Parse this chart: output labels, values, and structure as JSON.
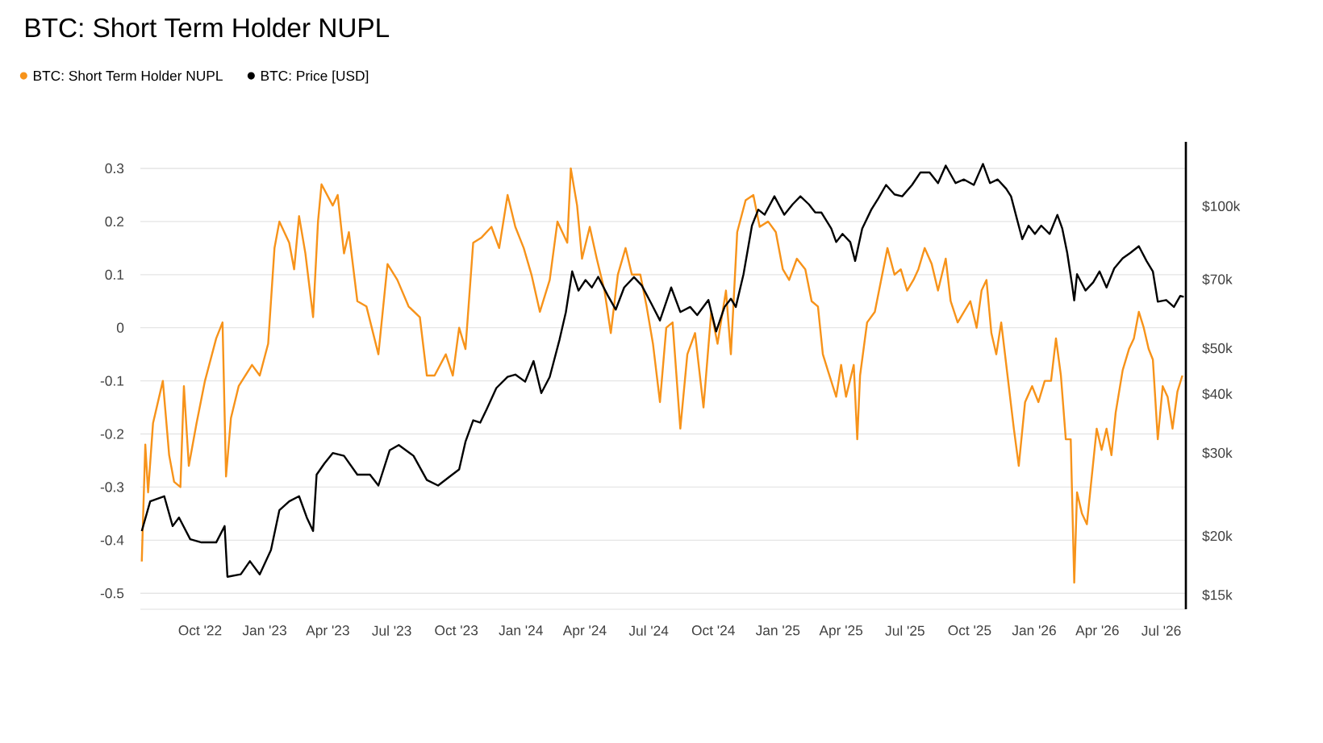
{
  "chart_data": {
    "type": "line",
    "title": "BTC: Short Term Holder NUPL",
    "legend": "top left",
    "grid": "y",
    "log": "y2",
    "xlim": [
      "2022-07-08",
      "2026-08-05"
    ],
    "xticks": [
      {
        "value": "2022-10-01",
        "label": "Oct '22"
      },
      {
        "value": "2023-01-01",
        "label": "Jan '23"
      },
      {
        "value": "2023-04-01",
        "label": "Apr '23"
      },
      {
        "value": "2023-07-01",
        "label": "Jul '23"
      },
      {
        "value": "2023-10-01",
        "label": "Oct '23"
      },
      {
        "value": "2024-01-01",
        "label": "Jan '24"
      },
      {
        "value": "2024-04-01",
        "label": "Apr '24"
      },
      {
        "value": "2024-07-01",
        "label": "Jul '24"
      },
      {
        "value": "2024-10-01",
        "label": "Oct '24"
      },
      {
        "value": "2025-01-01",
        "label": "Jan '25"
      },
      {
        "value": "2025-04-01",
        "label": "Apr '25"
      },
      {
        "value": "2025-07-01",
        "label": "Jul '25"
      },
      {
        "value": "2025-10-01",
        "label": "Oct '25"
      },
      {
        "value": "2026-01-01",
        "label": "Jan '26"
      },
      {
        "value": "2026-04-01",
        "label": "Apr '26"
      },
      {
        "value": "2026-07-01",
        "label": "Jul '26"
      }
    ],
    "ylim": [
      -0.53,
      0.35
    ],
    "yticks": [
      -0.5,
      -0.4,
      -0.3,
      -0.2,
      -0.1,
      0,
      0.1,
      0.2,
      0.3
    ],
    "y2lim": [
      14000,
      137000
    ],
    "y2ticks": [
      {
        "value": 15000,
        "label": "$15k"
      },
      {
        "value": 20000,
        "label": "$20k"
      },
      {
        "value": 30000,
        "label": "$30k"
      },
      {
        "value": 40000,
        "label": "$40k"
      },
      {
        "value": 50000,
        "label": "$50k"
      },
      {
        "value": 70000,
        "label": "$70k"
      },
      {
        "value": 100000,
        "label": "$100k"
      }
    ],
    "series": [
      {
        "name": "BTC: Short Term Holder NUPL",
        "color": "#f7931a",
        "x": [
          "2022-07-10",
          "2022-07-15",
          "2022-07-19",
          "2022-07-26",
          "2022-08-09",
          "2022-08-18",
          "2022-08-25",
          "2022-09-03",
          "2022-09-08",
          "2022-09-15",
          "2022-09-26",
          "2022-10-08",
          "2022-10-24",
          "2022-11-02",
          "2022-11-07",
          "2022-11-14",
          "2022-11-25",
          "2022-12-14",
          "2022-12-25",
          "2023-01-06",
          "2023-01-15",
          "2023-01-22",
          "2023-02-05",
          "2023-02-12",
          "2023-02-19",
          "2023-02-28",
          "2023-03-11",
          "2023-03-18",
          "2023-03-23",
          "2023-04-08",
          "2023-04-15",
          "2023-04-24",
          "2023-05-01",
          "2023-05-13",
          "2023-05-26",
          "2023-06-12",
          "2023-06-25",
          "2023-07-09",
          "2023-07-25",
          "2023-08-10",
          "2023-08-20",
          "2023-08-31",
          "2023-09-16",
          "2023-09-26",
          "2023-10-05",
          "2023-10-14",
          "2023-10-25",
          "2023-11-06",
          "2023-11-20",
          "2023-12-01",
          "2023-12-13",
          "2023-12-24",
          "2024-01-05",
          "2024-01-16",
          "2024-01-28",
          "2024-02-11",
          "2024-02-22",
          "2024-03-07",
          "2024-03-12",
          "2024-03-21",
          "2024-03-28",
          "2024-04-08",
          "2024-04-18",
          "2024-04-29",
          "2024-05-08",
          "2024-05-18",
          "2024-05-29",
          "2024-06-07",
          "2024-06-19",
          "2024-06-28",
          "2024-07-07",
          "2024-07-17",
          "2024-07-26",
          "2024-08-04",
          "2024-08-15",
          "2024-08-25",
          "2024-09-05",
          "2024-09-17",
          "2024-09-28",
          "2024-10-07",
          "2024-10-19",
          "2024-10-26",
          "2024-11-04",
          "2024-11-16",
          "2024-11-27",
          "2024-12-06",
          "2024-12-18",
          "2024-12-29",
          "2025-01-08",
          "2025-01-17",
          "2025-01-28",
          "2025-02-09",
          "2025-02-18",
          "2025-02-27",
          "2025-03-06",
          "2025-03-13",
          "2025-03-25",
          "2025-04-01",
          "2025-04-08",
          "2025-04-19",
          "2025-04-24",
          "2025-04-28",
          "2025-05-08",
          "2025-05-19",
          "2025-05-31",
          "2025-06-06",
          "2025-06-16",
          "2025-06-25",
          "2025-07-04",
          "2025-07-13",
          "2025-07-20",
          "2025-07-29",
          "2025-08-08",
          "2025-08-17",
          "2025-08-28",
          "2025-09-04",
          "2025-09-14",
          "2025-09-23",
          "2025-10-02",
          "2025-10-11",
          "2025-10-18",
          "2025-10-25",
          "2025-11-01",
          "2025-11-08",
          "2025-11-15",
          "2025-11-24",
          "2025-12-03",
          "2025-12-10",
          "2025-12-19",
          "2025-12-29",
          "2026-01-07",
          "2026-01-16",
          "2026-01-25",
          "2026-02-01",
          "2026-02-08",
          "2026-02-15",
          "2026-02-22",
          "2026-02-27",
          "2026-03-03",
          "2026-03-10",
          "2026-03-17",
          "2026-03-24",
          "2026-03-31",
          "2026-04-07",
          "2026-04-14",
          "2026-04-21",
          "2026-04-27",
          "2026-05-07",
          "2026-05-16",
          "2026-05-23",
          "2026-05-30",
          "2026-06-06",
          "2026-06-13",
          "2026-06-19",
          "2026-06-26",
          "2026-07-03",
          "2026-07-10",
          "2026-07-17",
          "2026-07-24",
          "2026-07-31"
        ],
        "values": [
          -0.44,
          -0.22,
          -0.31,
          -0.18,
          -0.1,
          -0.24,
          -0.29,
          -0.3,
          -0.11,
          -0.26,
          -0.18,
          -0.1,
          -0.02,
          0.01,
          -0.28,
          -0.17,
          -0.11,
          -0.07,
          -0.09,
          -0.03,
          0.15,
          0.2,
          0.16,
          0.11,
          0.21,
          0.14,
          0.02,
          0.2,
          0.27,
          0.23,
          0.25,
          0.14,
          0.18,
          0.05,
          0.04,
          -0.05,
          0.12,
          0.09,
          0.04,
          0.02,
          -0.09,
          -0.09,
          -0.05,
          -0.09,
          0.0,
          -0.04,
          0.16,
          0.17,
          0.19,
          0.15,
          0.25,
          0.19,
          0.15,
          0.1,
          0.03,
          0.09,
          0.2,
          0.16,
          0.3,
          0.23,
          0.13,
          0.19,
          0.13,
          0.07,
          -0.01,
          0.1,
          0.15,
          0.1,
          0.1,
          0.04,
          -0.03,
          -0.14,
          0.0,
          0.01,
          -0.19,
          -0.05,
          -0.01,
          -0.15,
          0.03,
          -0.03,
          0.07,
          -0.05,
          0.18,
          0.24,
          0.25,
          0.19,
          0.2,
          0.18,
          0.11,
          0.09,
          0.13,
          0.11,
          0.05,
          0.04,
          -0.05,
          -0.08,
          -0.13,
          -0.07,
          -0.13,
          -0.07,
          -0.21,
          -0.09,
          0.01,
          0.03,
          0.11,
          0.15,
          0.1,
          0.11,
          0.07,
          0.09,
          0.11,
          0.15,
          0.12,
          0.07,
          0.13,
          0.05,
          0.01,
          0.03,
          0.05,
          0.0,
          0.07,
          0.09,
          -0.01,
          -0.05,
          0.01,
          -0.09,
          -0.19,
          -0.26,
          -0.14,
          -0.11,
          -0.14,
          -0.1,
          -0.1,
          -0.02,
          -0.09,
          -0.21,
          -0.21,
          -0.48,
          -0.31,
          -0.35,
          -0.37,
          -0.28,
          -0.19,
          -0.23,
          -0.19,
          -0.24,
          -0.16,
          -0.08,
          -0.04,
          -0.02,
          0.03,
          0.0,
          -0.04,
          -0.06,
          -0.21,
          -0.11,
          -0.13,
          -0.19,
          -0.12,
          -0.09
        ]
      },
      {
        "name": "BTC: Price [USD]",
        "color": "#000000",
        "axis": "y2",
        "x": [
          "2022-07-10",
          "2022-07-22",
          "2022-08-11",
          "2022-08-23",
          "2022-09-01",
          "2022-09-17",
          "2022-10-03",
          "2022-10-24",
          "2022-11-05",
          "2022-11-09",
          "2022-11-28",
          "2022-12-11",
          "2022-12-25",
          "2023-01-10",
          "2023-01-22",
          "2023-02-05",
          "2023-02-19",
          "2023-03-02",
          "2023-03-11",
          "2023-03-16",
          "2023-03-27",
          "2023-04-08",
          "2023-04-24",
          "2023-05-13",
          "2023-05-31",
          "2023-06-12",
          "2023-06-28",
          "2023-07-11",
          "2023-08-01",
          "2023-08-20",
          "2023-09-05",
          "2023-09-21",
          "2023-10-05",
          "2023-10-14",
          "2023-10-25",
          "2023-11-04",
          "2023-11-13",
          "2023-11-27",
          "2023-12-13",
          "2023-12-24",
          "2024-01-07",
          "2024-01-19",
          "2024-01-30",
          "2024-02-11",
          "2024-02-25",
          "2024-03-05",
          "2024-03-14",
          "2024-03-23",
          "2024-04-02",
          "2024-04-11",
          "2024-04-20",
          "2024-05-04",
          "2024-05-15",
          "2024-05-27",
          "2024-06-10",
          "2024-06-21",
          "2024-07-05",
          "2024-07-17",
          "2024-08-02",
          "2024-08-15",
          "2024-08-29",
          "2024-09-08",
          "2024-09-24",
          "2024-10-05",
          "2024-10-17",
          "2024-10-26",
          "2024-11-02",
          "2024-11-13",
          "2024-11-25",
          "2024-12-04",
          "2024-12-13",
          "2024-12-27",
          "2025-01-10",
          "2025-01-22",
          "2025-02-02",
          "2025-02-14",
          "2025-02-23",
          "2025-03-04",
          "2025-03-18",
          "2025-03-25",
          "2025-04-03",
          "2025-04-14",
          "2025-04-21",
          "2025-05-01",
          "2025-05-14",
          "2025-05-24",
          "2025-06-04",
          "2025-06-16",
          "2025-06-27",
          "2025-07-11",
          "2025-07-23",
          "2025-08-05",
          "2025-08-17",
          "2025-08-28",
          "2025-09-11",
          "2025-09-23",
          "2025-10-07",
          "2025-10-20",
          "2025-10-30",
          "2025-11-10",
          "2025-11-22",
          "2025-11-29",
          "2025-12-08",
          "2025-12-15",
          "2025-12-24",
          "2026-01-02",
          "2026-01-11",
          "2026-01-23",
          "2026-02-03",
          "2026-02-10",
          "2026-02-17",
          "2026-02-24",
          "2026-02-27",
          "2026-03-03",
          "2026-03-15",
          "2026-03-26",
          "2026-04-04",
          "2026-04-14",
          "2026-04-25",
          "2026-05-07",
          "2026-05-18",
          "2026-05-30",
          "2026-06-10",
          "2026-06-19",
          "2026-06-26",
          "2026-07-08",
          "2026-07-19",
          "2026-07-28",
          "2026-08-02"
        ],
        "values": [
          20500,
          23700,
          24300,
          21000,
          21900,
          19700,
          19400,
          19400,
          21000,
          16400,
          16600,
          17700,
          16600,
          18700,
          22700,
          23700,
          24300,
          21900,
          20500,
          27000,
          28500,
          30000,
          29600,
          27000,
          27000,
          25600,
          30400,
          31200,
          29600,
          26300,
          25600,
          26700,
          27700,
          31700,
          35200,
          34800,
          37100,
          41200,
          43500,
          44000,
          42500,
          47000,
          40200,
          43500,
          52200,
          59700,
          72800,
          66300,
          69800,
          67300,
          70900,
          64600,
          60400,
          67300,
          70800,
          68000,
          62100,
          57300,
          67300,
          59700,
          61200,
          58800,
          63300,
          54300,
          61200,
          63700,
          61200,
          71800,
          91000,
          98400,
          96000,
          105000,
          96000,
          101000,
          105000,
          101000,
          97100,
          97000,
          89700,
          84000,
          87400,
          84000,
          76600,
          89700,
          98400,
          104000,
          111000,
          106000,
          105000,
          111000,
          118000,
          118000,
          112000,
          122000,
          112000,
          114000,
          111000,
          123000,
          112000,
          114000,
          109000,
          105000,
          93300,
          85200,
          91000,
          87400,
          91000,
          87400,
          95900,
          89700,
          79700,
          68100,
          63200,
          71800,
          66300,
          69000,
          72800,
          67300,
          73900,
          77600,
          79700,
          82300,
          76600,
          72800,
          62800,
          63300,
          61200,
          64600,
          64300
        ]
      }
    ]
  }
}
